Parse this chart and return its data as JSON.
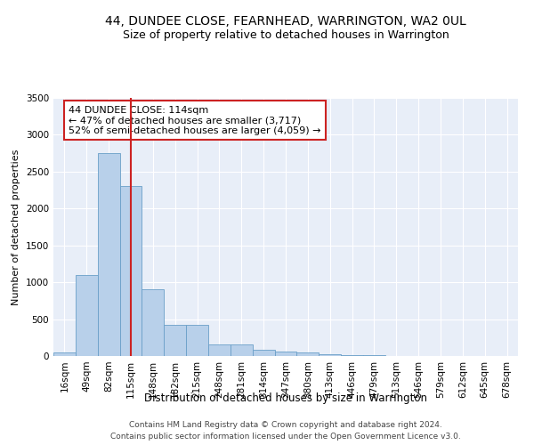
{
  "title": "44, DUNDEE CLOSE, FEARNHEAD, WARRINGTON, WA2 0UL",
  "subtitle": "Size of property relative to detached houses in Warrington",
  "xlabel": "Distribution of detached houses by size in Warrington",
  "ylabel": "Number of detached properties",
  "bin_labels": [
    "16sqm",
    "49sqm",
    "82sqm",
    "115sqm",
    "148sqm",
    "182sqm",
    "215sqm",
    "248sqm",
    "281sqm",
    "314sqm",
    "347sqm",
    "380sqm",
    "413sqm",
    "446sqm",
    "479sqm",
    "513sqm",
    "546sqm",
    "579sqm",
    "612sqm",
    "645sqm",
    "678sqm"
  ],
  "bar_values": [
    50,
    1100,
    2750,
    2300,
    900,
    420,
    420,
    160,
    155,
    85,
    60,
    48,
    28,
    18,
    7,
    5,
    3,
    2,
    1,
    1,
    0
  ],
  "bar_color": "#b8d0ea",
  "bar_edge_color": "#6a9fc8",
  "highlight_index": 3,
  "vline_color": "#cc2222",
  "annotation_text": "44 DUNDEE CLOSE: 114sqm\n← 47% of detached houses are smaller (3,717)\n52% of semi-detached houses are larger (4,059) →",
  "annotation_box_color": "#ffffff",
  "annotation_box_edge_color": "#cc2222",
  "ylim": [
    0,
    3500
  ],
  "yticks": [
    0,
    500,
    1000,
    1500,
    2000,
    2500,
    3000,
    3500
  ],
  "background_color": "#e8eef8",
  "footer_text": "Contains HM Land Registry data © Crown copyright and database right 2024.\nContains public sector information licensed under the Open Government Licence v3.0.",
  "title_fontsize": 10,
  "subtitle_fontsize": 9,
  "xlabel_fontsize": 8.5,
  "ylabel_fontsize": 8,
  "annotation_fontsize": 8,
  "footer_fontsize": 6.5,
  "tick_fontsize": 7.5
}
